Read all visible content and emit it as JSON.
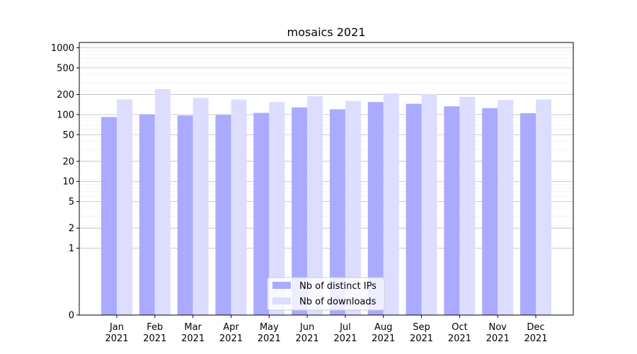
{
  "chart_data": {
    "type": "bar",
    "title": "mosaics 2021",
    "xlabel": "",
    "ylabel": "",
    "yscale": "symlog",
    "ylim": [
      0,
      1200
    ],
    "yticks": [
      0,
      1,
      2,
      5,
      10,
      20,
      50,
      100,
      200,
      500,
      1000
    ],
    "grid": true,
    "legend_position": "bottom-center",
    "categories": [
      [
        "Jan",
        "2021"
      ],
      [
        "Feb",
        "2021"
      ],
      [
        "Mar",
        "2021"
      ],
      [
        "Apr",
        "2021"
      ],
      [
        "May",
        "2021"
      ],
      [
        "Jun",
        "2021"
      ],
      [
        "Jul",
        "2021"
      ],
      [
        "Aug",
        "2021"
      ],
      [
        "Sep",
        "2021"
      ],
      [
        "Oct",
        "2021"
      ],
      [
        "Nov",
        "2021"
      ],
      [
        "Dec",
        "2021"
      ]
    ],
    "series": [
      {
        "name": "Nb of distinct IPs",
        "color": "#aaaaff",
        "values": [
          92,
          101,
          97,
          99,
          106,
          128,
          120,
          154,
          145,
          133,
          125,
          105
        ]
      },
      {
        "name": "Nb of downloads",
        "color": "#ddddff",
        "values": [
          168,
          240,
          178,
          168,
          154,
          188,
          160,
          207,
          203,
          184,
          166,
          168
        ]
      }
    ]
  }
}
